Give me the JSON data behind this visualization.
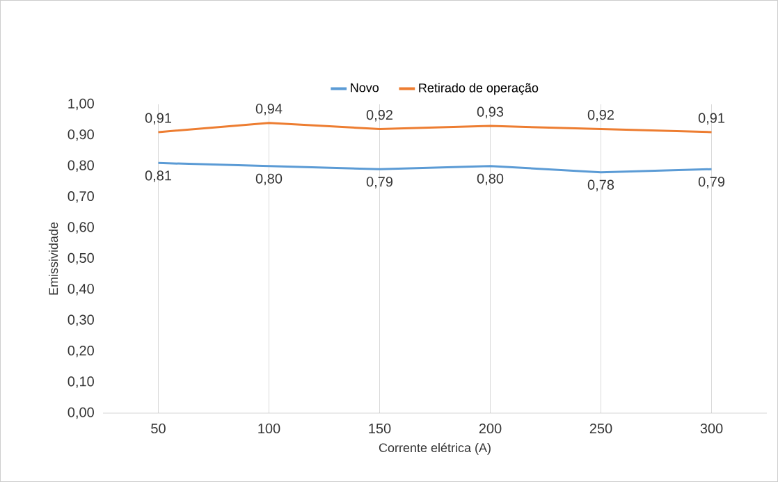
{
  "chart_data": {
    "type": "line",
    "xlabel": "Corrente elétrica (A)",
    "ylabel": "Emissividade",
    "categories": [
      "50",
      "100",
      "150",
      "200",
      "250",
      "300"
    ],
    "series": [
      {
        "name": "Novo",
        "color": "#5b9bd5",
        "values": [
          0.81,
          0.8,
          0.79,
          0.8,
          0.78,
          0.79
        ],
        "value_labels": [
          "0,81",
          "0,80",
          "0,79",
          "0,80",
          "0,78",
          "0,79"
        ]
      },
      {
        "name": "Retirado de operação",
        "color": "#ed7d31",
        "values": [
          0.91,
          0.94,
          0.92,
          0.93,
          0.92,
          0.91
        ],
        "value_labels": [
          "0,91",
          "0,94",
          "0,92",
          "0,93",
          "0,92",
          "0,91"
        ]
      }
    ],
    "ylim": [
      0,
      1
    ],
    "yticks": [
      {
        "value": 0,
        "label": "0,00"
      },
      {
        "value": 0.1,
        "label": "0,10"
      },
      {
        "value": 0.2,
        "label": "0,20"
      },
      {
        "value": 0.3,
        "label": "0,30"
      },
      {
        "value": 0.4,
        "label": "0,40"
      },
      {
        "value": 0.5,
        "label": "0,50"
      },
      {
        "value": 0.6,
        "label": "0,60"
      },
      {
        "value": 0.7,
        "label": "0,70"
      },
      {
        "value": 0.8,
        "label": "0,80"
      },
      {
        "value": 0.9,
        "label": "0,90"
      },
      {
        "value": 1.0,
        "label": "1,00"
      }
    ],
    "grid": "x",
    "legend": "top"
  }
}
